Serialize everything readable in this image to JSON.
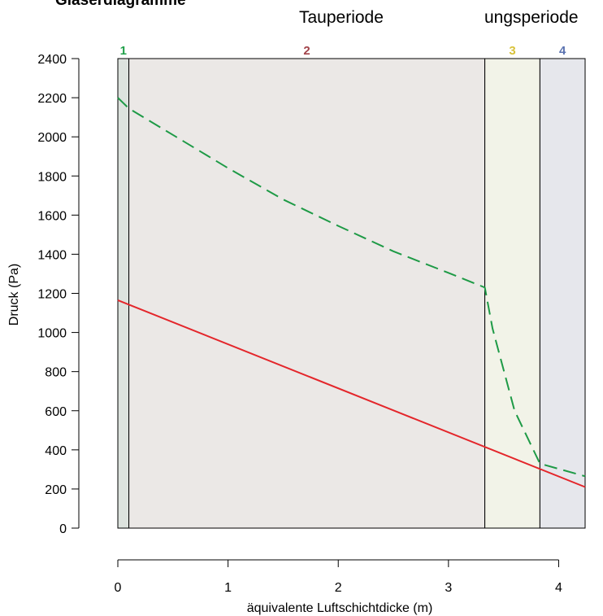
{
  "chart_data": {
    "type": "line",
    "title": "Glaserdiagramme",
    "period_labels": [
      "Tauperiode",
      "ungsperiode"
    ],
    "xlabel": "äquivalente Luftschichtdicke (m)",
    "ylabel": "Druck (Pa)",
    "xlim": [
      0,
      4.24
    ],
    "ylim": [
      0,
      2400
    ],
    "xticks": [
      0,
      1,
      2,
      3,
      4
    ],
    "yticks": [
      0,
      200,
      400,
      600,
      800,
      1000,
      1200,
      1400,
      1600,
      1800,
      2000,
      2200,
      2400
    ],
    "grid": false,
    "layers": [
      {
        "label": "1",
        "x_start": 0.0,
        "x_end": 0.1,
        "fill": "#dde3de",
        "label_color": "#21a04a"
      },
      {
        "label": "2",
        "x_start": 0.1,
        "x_end": 3.33,
        "fill": "#ebe8e6",
        "label_color": "#a2434a"
      },
      {
        "label": "3",
        "x_start": 3.33,
        "x_end": 3.83,
        "fill": "#f2f3e8",
        "label_color": "#d8c23a"
      },
      {
        "label": "4",
        "x_start": 3.83,
        "x_end": 4.24,
        "fill": "#e6e7ec",
        "label_color": "#5a72b0"
      }
    ],
    "series": [
      {
        "style": "dashed",
        "color": "#1e9a46",
        "x": [
          0.0,
          0.1,
          0.5,
          1.0,
          1.5,
          2.0,
          2.5,
          3.0,
          3.33,
          3.4,
          3.6,
          3.83,
          4.24
        ],
        "y": [
          2200,
          2145,
          2010,
          1840,
          1680,
          1545,
          1415,
          1305,
          1230,
          1020,
          600,
          330,
          265
        ]
      },
      {
        "style": "solid",
        "color": "#e4262b",
        "x": [
          0.0,
          4.24
        ],
        "y": [
          1165,
          210
        ]
      }
    ]
  }
}
